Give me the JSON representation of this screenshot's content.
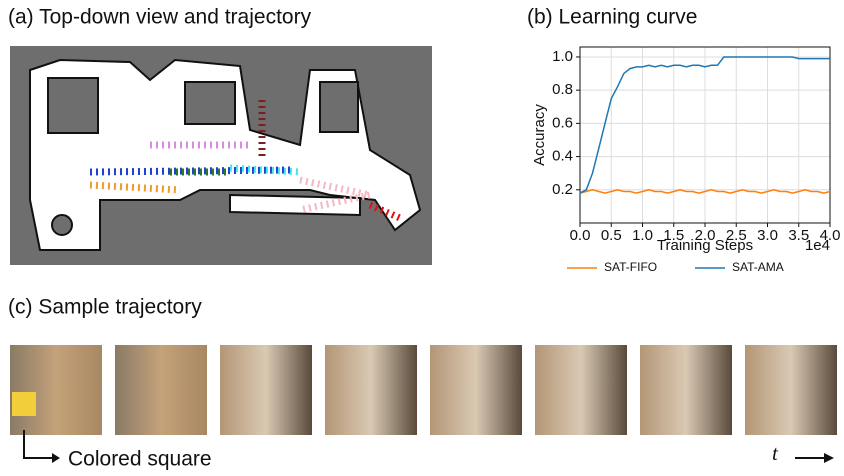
{
  "panel_a": {
    "title": "(a) Top-down view and trajectory"
  },
  "panel_c": {
    "title": "(c) Sample trajectory",
    "annotation": "Colored square",
    "time_label": "t"
  },
  "chart_data": {
    "type": "line",
    "title": "(b) Learning curve",
    "x_label": "Training Steps",
    "y_label": "Accuracy",
    "x_offset_label": "1e4",
    "xlim": [
      0,
      40000
    ],
    "ylim": [
      0,
      1.06
    ],
    "xticks": [
      {
        "value": 0,
        "label": "0.0"
      },
      {
        "value": 5000,
        "label": "0.5"
      },
      {
        "value": 10000,
        "label": "1.0"
      },
      {
        "value": 15000,
        "label": "1.5"
      },
      {
        "value": 20000,
        "label": "2.0"
      },
      {
        "value": 25000,
        "label": "2.5"
      },
      {
        "value": 30000,
        "label": "3.0"
      },
      {
        "value": 35000,
        "label": "3.5"
      },
      {
        "value": 40000,
        "label": "4.0"
      }
    ],
    "yticks": [
      0.2,
      0.4,
      0.6,
      0.8,
      {
        "value": 1,
        "label": "1.0"
      }
    ],
    "grid": true,
    "x": [
      0,
      1000,
      2000,
      3000,
      4000,
      5000,
      6000,
      7000,
      8000,
      9000,
      10000,
      11000,
      12000,
      13000,
      14000,
      15000,
      16000,
      17000,
      18000,
      19000,
      20000,
      21000,
      22000,
      23000,
      24000,
      25000,
      26000,
      27000,
      28000,
      29000,
      30000,
      31000,
      32000,
      33000,
      34000,
      35000,
      36000,
      37000,
      38000,
      39000,
      40000
    ],
    "series": [
      {
        "name": "SAT-FIFO",
        "color": "#ff7f0e",
        "values": [
          0.18,
          0.19,
          0.2,
          0.19,
          0.18,
          0.19,
          0.2,
          0.19,
          0.19,
          0.18,
          0.19,
          0.2,
          0.19,
          0.19,
          0.18,
          0.19,
          0.2,
          0.19,
          0.19,
          0.18,
          0.19,
          0.2,
          0.19,
          0.19,
          0.18,
          0.19,
          0.2,
          0.19,
          0.19,
          0.18,
          0.19,
          0.2,
          0.19,
          0.19,
          0.18,
          0.19,
          0.2,
          0.19,
          0.19,
          0.18,
          0.19
        ]
      },
      {
        "name": "SAT-AMA",
        "color": "#1f77b4",
        "values": [
          0.18,
          0.2,
          0.3,
          0.45,
          0.6,
          0.75,
          0.82,
          0.9,
          0.93,
          0.94,
          0.94,
          0.95,
          0.94,
          0.95,
          0.94,
          0.95,
          0.95,
          0.94,
          0.95,
          0.95,
          0.94,
          0.95,
          0.95,
          1.0,
          1.0,
          1.0,
          1.0,
          1.0,
          1.0,
          1.0,
          1.0,
          1.0,
          1.0,
          1.0,
          1.0,
          0.99,
          0.99,
          0.99,
          0.99,
          0.99,
          0.99
        ]
      }
    ],
    "legend": "bottom"
  }
}
